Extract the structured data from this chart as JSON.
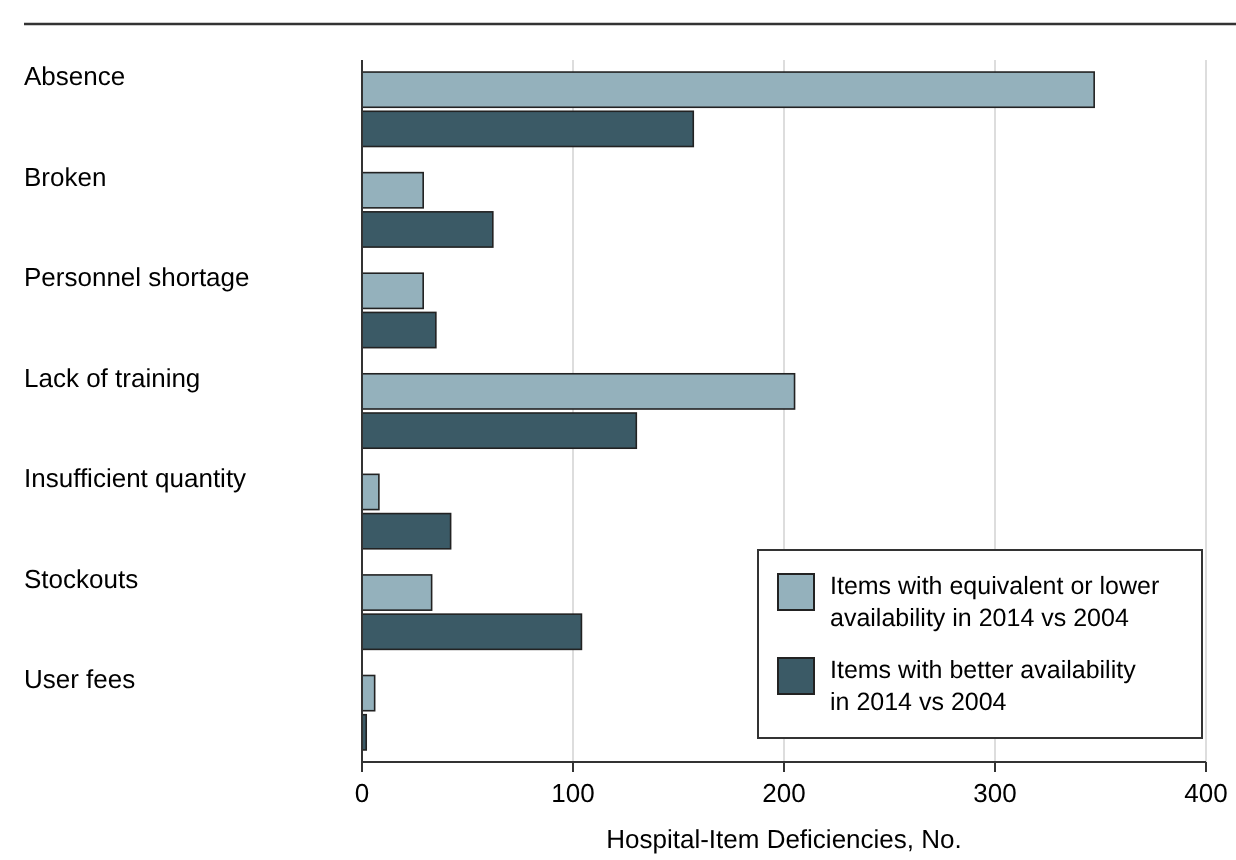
{
  "chart_data": {
    "type": "bar",
    "orientation": "horizontal",
    "categories": [
      "Absence",
      "Broken",
      "Personnel shortage",
      "Lack of training",
      "Insufficient quantity",
      "Stockouts",
      "User fees"
    ],
    "series": [
      {
        "name": "Items with equivalent or lower availability in 2014 vs 2004",
        "color": "#94b1bc",
        "values": [
          347,
          29,
          29,
          205,
          8,
          33,
          6
        ]
      },
      {
        "name": "Items with better availability in 2014 vs 2004",
        "color": "#3b5a66",
        "values": [
          157,
          62,
          35,
          130,
          42,
          104,
          2
        ]
      }
    ],
    "xlabel": "Hospital-Item Deficiencies, No.",
    "xlim": [
      0,
      400
    ],
    "xticks": [
      0,
      100,
      200,
      300,
      400
    ],
    "grid": "x",
    "legend": "bottom right"
  }
}
